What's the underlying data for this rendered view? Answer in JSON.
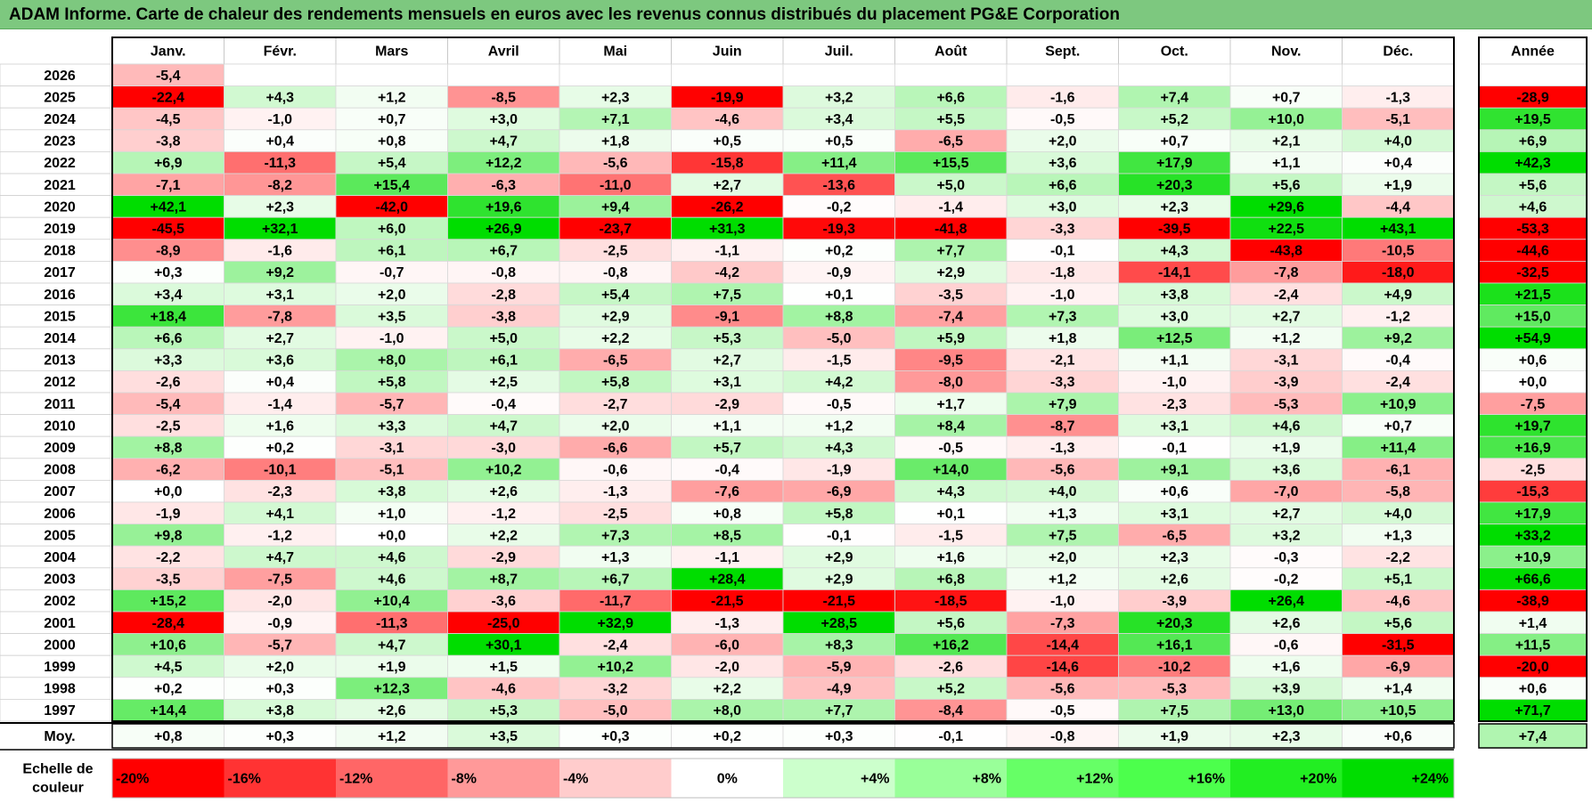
{
  "title": "ADAM Informe. Carte de chaleur des rendements mensuels en euros avec les revenus connus distribués du placement PG&E Corporation",
  "chart_data": {
    "type": "heatmap",
    "months": [
      "Janv.",
      "Févr.",
      "Mars",
      "Avril",
      "Mai",
      "Juin",
      "Juil.",
      "Août",
      "Sept.",
      "Oct.",
      "Nov.",
      "Déc."
    ],
    "year_header": "Année",
    "rows": [
      {
        "year": "2026",
        "values": [
          "-5,4",
          "",
          "",
          "",
          "",
          "",
          "",
          "",
          "",
          "",
          "",
          ""
        ],
        "annual": ""
      },
      {
        "year": "2025",
        "values": [
          "-22,4",
          "+4,3",
          "+1,2",
          "-8,5",
          "+2,3",
          "-19,9",
          "+3,2",
          "+6,6",
          "-1,6",
          "+7,4",
          "+0,7",
          "-1,3"
        ],
        "annual": "-28,9"
      },
      {
        "year": "2024",
        "values": [
          "-4,5",
          "-1,0",
          "+0,7",
          "+3,0",
          "+7,1",
          "-4,6",
          "+3,4",
          "+5,5",
          "-0,5",
          "+5,2",
          "+10,0",
          "-5,1"
        ],
        "annual": "+19,5"
      },
      {
        "year": "2023",
        "values": [
          "-3,8",
          "+0,4",
          "+0,8",
          "+4,7",
          "+1,8",
          "+0,5",
          "+0,5",
          "-6,5",
          "+2,0",
          "+0,7",
          "+2,1",
          "+4,0"
        ],
        "annual": "+6,9"
      },
      {
        "year": "2022",
        "values": [
          "+6,9",
          "-11,3",
          "+5,4",
          "+12,2",
          "-5,6",
          "-15,8",
          "+11,4",
          "+15,5",
          "+3,6",
          "+17,9",
          "+1,1",
          "+0,4"
        ],
        "annual": "+42,3"
      },
      {
        "year": "2021",
        "values": [
          "-7,1",
          "-8,2",
          "+15,4",
          "-6,3",
          "-11,0",
          "+2,7",
          "-13,6",
          "+5,0",
          "+6,6",
          "+20,3",
          "+5,6",
          "+1,9"
        ],
        "annual": "+5,6"
      },
      {
        "year": "2020",
        "values": [
          "+42,1",
          "+2,3",
          "-42,0",
          "+19,6",
          "+9,4",
          "-26,2",
          "-0,2",
          "-1,4",
          "+3,0",
          "+2,3",
          "+29,6",
          "-4,4"
        ],
        "annual": "+4,6"
      },
      {
        "year": "2019",
        "values": [
          "-45,5",
          "+32,1",
          "+6,0",
          "+26,9",
          "-23,7",
          "+31,3",
          "-19,3",
          "-41,8",
          "-3,3",
          "-39,5",
          "+22,5",
          "+43,1"
        ],
        "annual": "-53,3"
      },
      {
        "year": "2018",
        "values": [
          "-8,9",
          "-1,6",
          "+6,1",
          "+6,7",
          "-2,5",
          "-1,1",
          "+0,2",
          "+7,7",
          "-0,1",
          "+4,3",
          "-43,8",
          "-10,5"
        ],
        "annual": "-44,6"
      },
      {
        "year": "2017",
        "values": [
          "+0,3",
          "+9,2",
          "-0,7",
          "-0,8",
          "-0,8",
          "-4,2",
          "-0,9",
          "+2,9",
          "-1,8",
          "-14,1",
          "-7,8",
          "-18,0"
        ],
        "annual": "-32,5"
      },
      {
        "year": "2016",
        "values": [
          "+3,4",
          "+3,1",
          "+2,0",
          "-2,8",
          "+5,4",
          "+7,5",
          "+0,1",
          "-3,5",
          "-1,0",
          "+3,8",
          "-2,4",
          "+4,9"
        ],
        "annual": "+21,5"
      },
      {
        "year": "2015",
        "values": [
          "+18,4",
          "-7,8",
          "+3,5",
          "-3,8",
          "+2,9",
          "-9,1",
          "+8,8",
          "-7,4",
          "+7,3",
          "+3,0",
          "+2,7",
          "-1,2"
        ],
        "annual": "+15,0"
      },
      {
        "year": "2014",
        "values": [
          "+6,6",
          "+2,7",
          "-1,0",
          "+5,0",
          "+2,2",
          "+5,3",
          "-5,0",
          "+5,9",
          "+1,8",
          "+12,5",
          "+1,2",
          "+9,2"
        ],
        "annual": "+54,9"
      },
      {
        "year": "2013",
        "values": [
          "+3,3",
          "+3,6",
          "+8,0",
          "+6,1",
          "-6,5",
          "+2,7",
          "-1,5",
          "-9,5",
          "-2,1",
          "+1,1",
          "-3,1",
          "-0,4"
        ],
        "annual": "+0,6"
      },
      {
        "year": "2012",
        "values": [
          "-2,6",
          "+0,4",
          "+5,8",
          "+2,5",
          "+5,8",
          "+3,1",
          "+4,2",
          "-8,0",
          "-3,3",
          "-1,0",
          "-3,9",
          "-2,4"
        ],
        "annual": "+0,0"
      },
      {
        "year": "2011",
        "values": [
          "-5,4",
          "-1,4",
          "-5,7",
          "-0,4",
          "-2,7",
          "-2,9",
          "-0,5",
          "+1,7",
          "+7,9",
          "-2,3",
          "-5,3",
          "+10,9"
        ],
        "annual": "-7,5"
      },
      {
        "year": "2010",
        "values": [
          "-2,5",
          "+1,6",
          "+3,3",
          "+4,7",
          "+2,0",
          "+1,1",
          "+1,2",
          "+8,4",
          "-8,7",
          "+3,1",
          "+4,6",
          "+0,7"
        ],
        "annual": "+19,7"
      },
      {
        "year": "2009",
        "values": [
          "+8,8",
          "+0,2",
          "-3,1",
          "-3,0",
          "-6,6",
          "+5,7",
          "+4,3",
          "-0,5",
          "-1,3",
          "-0,1",
          "+1,9",
          "+11,4"
        ],
        "annual": "+16,9"
      },
      {
        "year": "2008",
        "values": [
          "-6,2",
          "-10,1",
          "-5,1",
          "+10,2",
          "-0,6",
          "-0,4",
          "-1,9",
          "+14,0",
          "-5,6",
          "+9,1",
          "+3,6",
          "-6,1"
        ],
        "annual": "-2,5"
      },
      {
        "year": "2007",
        "values": [
          "+0,0",
          "-2,3",
          "+3,8",
          "+2,6",
          "-1,3",
          "-7,6",
          "-6,9",
          "+4,3",
          "+4,0",
          "+0,6",
          "-7,0",
          "-5,8"
        ],
        "annual": "-15,3"
      },
      {
        "year": "2006",
        "values": [
          "-1,9",
          "+4,1",
          "+1,0",
          "-1,2",
          "-2,5",
          "+0,8",
          "+5,8",
          "+0,1",
          "+1,3",
          "+3,1",
          "+2,7",
          "+4,0"
        ],
        "annual": "+17,9"
      },
      {
        "year": "2005",
        "values": [
          "+9,8",
          "-1,2",
          "+0,0",
          "+2,2",
          "+7,3",
          "+8,5",
          "-0,1",
          "-1,5",
          "+7,5",
          "-6,5",
          "+3,2",
          "+1,3"
        ],
        "annual": "+33,2"
      },
      {
        "year": "2004",
        "values": [
          "-2,2",
          "+4,7",
          "+4,6",
          "-2,9",
          "+1,3",
          "-1,1",
          "+2,9",
          "+1,6",
          "+2,0",
          "+2,3",
          "-0,3",
          "-2,2"
        ],
        "annual": "+10,9"
      },
      {
        "year": "2003",
        "values": [
          "-3,5",
          "-7,5",
          "+4,6",
          "+8,7",
          "+6,7",
          "+28,4",
          "+2,9",
          "+6,8",
          "+1,2",
          "+2,6",
          "-0,2",
          "+5,1"
        ],
        "annual": "+66,6"
      },
      {
        "year": "2002",
        "values": [
          "+15,2",
          "-2,0",
          "+10,4",
          "-3,6",
          "-11,7",
          "-21,5",
          "-21,5",
          "-18,5",
          "-1,0",
          "-3,9",
          "+26,4",
          "-4,6"
        ],
        "annual": "-38,9"
      },
      {
        "year": "2001",
        "values": [
          "-28,4",
          "-0,9",
          "-11,3",
          "-25,0",
          "+32,9",
          "-1,3",
          "+28,5",
          "+5,6",
          "-7,3",
          "+20,3",
          "+2,6",
          "+5,6"
        ],
        "annual": "+1,4"
      },
      {
        "year": "2000",
        "values": [
          "+10,6",
          "-5,7",
          "+4,7",
          "+30,1",
          "-2,4",
          "-6,0",
          "+8,3",
          "+16,2",
          "-14,4",
          "+16,1",
          "-0,6",
          "-31,5"
        ],
        "annual": "+11,5"
      },
      {
        "year": "1999",
        "values": [
          "+4,5",
          "+2,0",
          "+1,9",
          "+1,5",
          "+10,2",
          "-2,0",
          "-5,9",
          "-2,6",
          "-14,6",
          "-10,2",
          "+1,6",
          "-6,9"
        ],
        "annual": "-20,0"
      },
      {
        "year": "1998",
        "values": [
          "+0,2",
          "+0,3",
          "+12,3",
          "-4,6",
          "-3,2",
          "+2,2",
          "-4,9",
          "+5,2",
          "-5,6",
          "-5,3",
          "+3,9",
          "+1,4"
        ],
        "annual": "+0,6"
      },
      {
        "year": "1997",
        "values": [
          "+14,4",
          "+3,8",
          "+2,6",
          "+5,3",
          "-5,0",
          "+8,0",
          "+7,7",
          "-8,4",
          "-0,5",
          "+7,5",
          "+13,0",
          "+10,5"
        ],
        "annual": "+71,7"
      }
    ],
    "average": {
      "label": "Moy.",
      "values": [
        "+0,8",
        "+0,3",
        "+1,2",
        "+3,5",
        "+0,3",
        "+0,2",
        "+0,3",
        "-0,1",
        "-0,8",
        "+1,9",
        "+2,3",
        "+0,6"
      ],
      "annual": "+7,4"
    },
    "scale": {
      "label_line1": "Echelle de",
      "label_line2": "couleur",
      "steps": [
        {
          "label": "-20%",
          "value": -20,
          "color": "#ff0000"
        },
        {
          "label": "-16%",
          "value": -16,
          "color": "#ff3333"
        },
        {
          "label": "-12%",
          "value": -12,
          "color": "#ff6666"
        },
        {
          "label": "-8%",
          "value": -8,
          "color": "#ff9999"
        },
        {
          "label": "-4%",
          "value": -4,
          "color": "#ffcccc"
        },
        {
          "label": "0%",
          "value": 0,
          "color": "#ffffff"
        },
        {
          "label": "+4%",
          "value": 4,
          "color": "#ccffcc"
        },
        {
          "label": "+8%",
          "value": 8,
          "color": "#99ff99"
        },
        {
          "label": "+12%",
          "value": 12,
          "color": "#66ff66"
        },
        {
          "label": "+16%",
          "value": 16,
          "color": "#4cff4c"
        },
        {
          "label": "+20%",
          "value": 20,
          "color": "#22ee22"
        },
        {
          "label": "+24%",
          "value": 24,
          "color": "#00dd00"
        }
      ]
    }
  }
}
